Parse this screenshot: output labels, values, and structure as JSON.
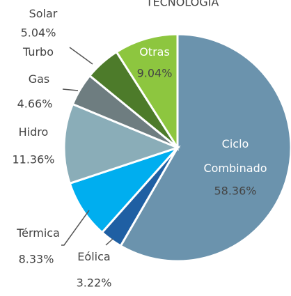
{
  "chart_data": {
    "type": "pie",
    "title": "TECNOLOGÍA",
    "categories": [
      "Ciclo Combinado",
      "Eólica",
      "Térmica",
      "Hidro",
      "Gas",
      "Solar Turbo",
      "Otras"
    ],
    "values": [
      58.36,
      3.22,
      8.33,
      11.36,
      4.66,
      5.04,
      9.04
    ],
    "value_labels": [
      "58.36%",
      "3.22%",
      "8.33%",
      "11.36%",
      "4.66%",
      "5.04%",
      "9.04%"
    ],
    "colors": [
      "#6b93ad",
      "#1f5fa3",
      "#00aeef",
      "#8aadb8",
      "#6e7d80",
      "#4d7b2a",
      "#8dc63f"
    ]
  }
}
